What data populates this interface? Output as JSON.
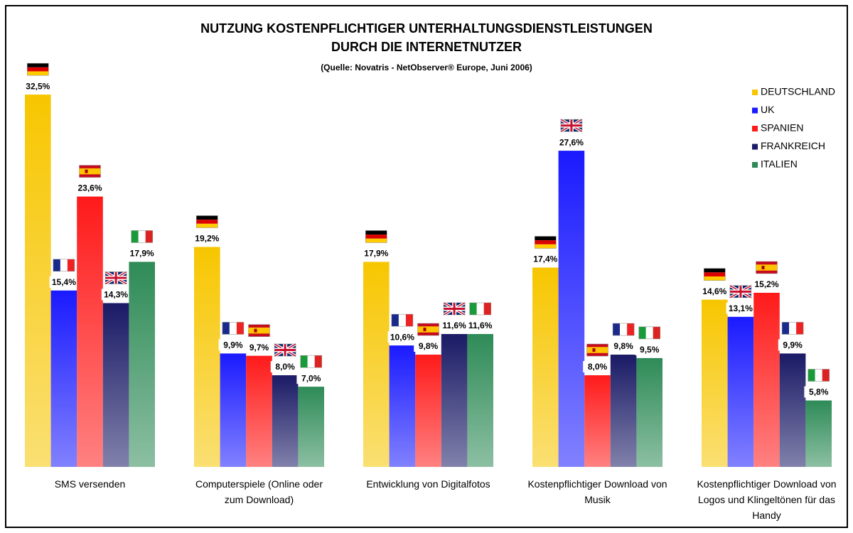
{
  "chart_data": {
    "type": "bar",
    "title": [
      "NUTZUNG KOSTENPFLICHTIGER UNTERHALTUNGSDIENSTLEISTUNGEN",
      "DURCH DIE INTERNETNUTZER"
    ],
    "subtitle": "(Quelle: Novatris - NetObserver® Europe, Juni 2006)",
    "categories": [
      "SMS versenden",
      "Computerspiele (Online oder zum Download)",
      "Entwicklung von Digitalfotos",
      "Kostenpflichtiger Download von Musik",
      "Kostenpflichtiger Download von Logos und Klingeltönen für das Handy"
    ],
    "series": [
      {
        "name": "DEUTSCHLAND",
        "color": "#f7c600",
        "values": [
          32.5,
          19.2,
          17.9,
          17.4,
          14.6
        ],
        "value_labels": [
          "32,5%",
          "19,2%",
          "17,9%",
          "17,4%",
          "14,6%"
        ]
      },
      {
        "name": "UK",
        "color": "#1a1aff",
        "values": [
          15.4,
          9.9,
          10.6,
          27.6,
          13.1
        ],
        "value_labels": [
          "15,4%",
          "9,9%",
          "10,6%",
          "27,6%",
          "13,1%"
        ]
      },
      {
        "name": "SPANIEN",
        "color": "#ff1a1a",
        "values": [
          23.6,
          9.7,
          9.8,
          8.0,
          15.2
        ],
        "value_labels": [
          "23,6%",
          "9,7%",
          "9,8%",
          "8,0%",
          "15,2%"
        ]
      },
      {
        "name": "FRANKREICH",
        "color": "#1a1a66",
        "values": [
          14.3,
          8.0,
          11.6,
          9.8,
          9.9
        ],
        "value_labels": [
          "14,3%",
          "8,0%",
          "11,6%",
          "9,8%",
          "9,9%"
        ]
      },
      {
        "name": "ITALIEN",
        "color": "#2e8b57",
        "values": [
          17.9,
          7.0,
          11.6,
          9.5,
          5.8
        ],
        "value_labels": [
          "17,9%",
          "7,0%",
          "11,6%",
          "9,5%",
          "5,8%"
        ]
      }
    ],
    "legend": "top-right"
  }
}
